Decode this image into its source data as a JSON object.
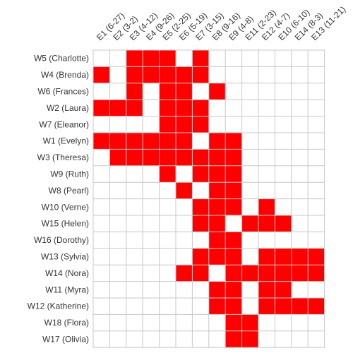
{
  "chart_data": {
    "type": "heatmap",
    "title": "",
    "xlabel": "",
    "ylabel": "",
    "grid": true,
    "colors": {
      "filled": "#ff0000",
      "empty": "#ffffff",
      "grid": "#c8c8c8",
      "text": "#333333"
    },
    "columns": [
      "E1 (6-27)",
      "E2 (3-2)",
      "E3 (4-12)",
      "E4 (9-26)",
      "E5 (2-25)",
      "E6 (5-19)",
      "E7 (3-15)",
      "E8 (9-16)",
      "E9 (4-8)",
      "E11 (2-23)",
      "E12 (4-7)",
      "E10 (6-10)",
      "E14 (8-3)",
      "E13 (11-21)"
    ],
    "rows": [
      "W5 (Charlotte)",
      "W4 (Brenda)",
      "W6 (Frances)",
      "W2 (Laura)",
      "W7 (Eleanor)",
      "W1 (Evelyn)",
      "W3 (Theresa)",
      "W9 (Ruth)",
      "W8 (Pearl)",
      "W10 (Verne)",
      "W15 (Helen)",
      "W16 (Dorothy)",
      "W13 (Sylvia)",
      "W14 (Nora)",
      "W11 (Myra)",
      "W12 (Katherine)",
      "W18 (Flora)",
      "W17 (Olivia)"
    ],
    "values": [
      [
        0,
        0,
        1,
        1,
        1,
        0,
        1,
        0,
        0,
        0,
        0,
        0,
        0,
        0
      ],
      [
        1,
        0,
        1,
        1,
        1,
        1,
        1,
        0,
        0,
        0,
        0,
        0,
        0,
        0
      ],
      [
        0,
        0,
        1,
        0,
        1,
        1,
        0,
        1,
        0,
        0,
        0,
        0,
        0,
        0
      ],
      [
        1,
        1,
        1,
        0,
        1,
        1,
        1,
        0,
        0,
        0,
        0,
        0,
        0,
        0
      ],
      [
        0,
        0,
        0,
        0,
        1,
        1,
        1,
        0,
        0,
        0,
        0,
        0,
        0,
        0
      ],
      [
        1,
        1,
        1,
        1,
        1,
        1,
        0,
        1,
        1,
        0,
        0,
        0,
        0,
        0
      ],
      [
        0,
        1,
        1,
        1,
        1,
        1,
        1,
        1,
        1,
        0,
        0,
        0,
        0,
        0
      ],
      [
        0,
        0,
        0,
        0,
        1,
        0,
        1,
        1,
        1,
        0,
        0,
        0,
        0,
        0
      ],
      [
        0,
        0,
        0,
        0,
        0,
        1,
        0,
        1,
        1,
        0,
        0,
        0,
        0,
        0
      ],
      [
        0,
        0,
        0,
        0,
        0,
        0,
        1,
        1,
        1,
        0,
        1,
        0,
        0,
        0
      ],
      [
        0,
        0,
        0,
        0,
        0,
        0,
        1,
        1,
        0,
        1,
        1,
        1,
        0,
        0
      ],
      [
        0,
        0,
        0,
        0,
        0,
        0,
        0,
        1,
        1,
        0,
        0,
        0,
        0,
        0
      ],
      [
        0,
        0,
        0,
        0,
        0,
        0,
        1,
        1,
        1,
        0,
        1,
        1,
        1,
        1
      ],
      [
        0,
        0,
        0,
        0,
        0,
        1,
        1,
        0,
        1,
        1,
        1,
        1,
        1,
        1
      ],
      [
        0,
        0,
        0,
        0,
        0,
        0,
        0,
        1,
        1,
        0,
        1,
        1,
        0,
        0
      ],
      [
        0,
        0,
        0,
        0,
        0,
        0,
        0,
        1,
        1,
        0,
        1,
        1,
        1,
        1
      ],
      [
        0,
        0,
        0,
        0,
        0,
        0,
        0,
        0,
        1,
        1,
        0,
        0,
        0,
        0
      ],
      [
        0,
        0,
        0,
        0,
        0,
        0,
        0,
        0,
        1,
        1,
        0,
        0,
        0,
        0
      ]
    ]
  }
}
